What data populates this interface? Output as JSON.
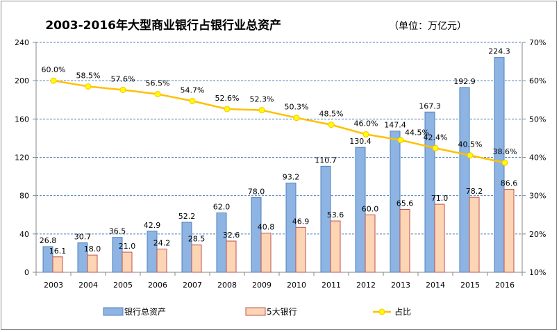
{
  "chart_data": {
    "type": "bar",
    "title": "2003-2016年大型商业银行占银行业总资产",
    "subtitle": "（单位：万亿元）",
    "categories": [
      "2003",
      "2004",
      "2005",
      "2006",
      "2007",
      "2008",
      "2009",
      "2010",
      "2011",
      "2012",
      "2013",
      "2014",
      "2015",
      "2016"
    ],
    "series": [
      {
        "name": "银行总资产",
        "kind": "bar",
        "axis": "left",
        "color": "#8DB4E2",
        "stroke": "#4F81BD",
        "values": [
          26.8,
          30.7,
          36.5,
          42.9,
          52.2,
          62.0,
          78.0,
          93.2,
          110.7,
          130.4,
          147.4,
          167.3,
          192.9,
          224.3
        ],
        "labels": [
          "26.8",
          "30.7",
          "36.5",
          "42.9",
          "52.2",
          "62.0",
          "78.0",
          "93.2",
          "110.7",
          "130.4",
          "147.4",
          "167.3",
          "192.9",
          "224.3"
        ]
      },
      {
        "name": "5大银行",
        "kind": "bar",
        "axis": "left",
        "color": "#FCD5B5",
        "stroke": "#C0504D",
        "values": [
          16.1,
          18.0,
          21.0,
          24.2,
          28.5,
          32.6,
          40.8,
          46.9,
          53.6,
          60.0,
          65.6,
          71.0,
          78.2,
          86.6
        ],
        "labels": [
          "16.1",
          "18.0",
          "21.0",
          "24.2",
          "28.5",
          "32.6",
          "40.8",
          "46.9",
          "53.6",
          "60.0",
          "65.6",
          "71.0",
          "78.2",
          "86.6"
        ]
      },
      {
        "name": "占比",
        "kind": "line",
        "axis": "right",
        "color": "#FFC000",
        "marker": "#FFFF00",
        "values": [
          60.0,
          58.5,
          57.6,
          56.5,
          54.7,
          52.6,
          52.3,
          50.3,
          48.5,
          46.0,
          44.5,
          42.4,
          40.5,
          38.6
        ],
        "labels": [
          "60.0%",
          "58.5%",
          "57.6%",
          "56.5%",
          "54.7%",
          "52.6%",
          "52.3%",
          "50.3%",
          "48.5%",
          "46.0%",
          "44.5%",
          "42.4%",
          "40.5%",
          "38.6%"
        ]
      }
    ],
    "ylim": [
      0,
      240
    ],
    "yticks": [
      "0",
      "40",
      "80",
      "120",
      "160",
      "200",
      "240"
    ],
    "y2lim": [
      10,
      70
    ],
    "y2ticks": [
      "10%",
      "20%",
      "30%",
      "40%",
      "50%",
      "60%",
      "70%"
    ],
    "grid": true,
    "legend": "bottom"
  }
}
